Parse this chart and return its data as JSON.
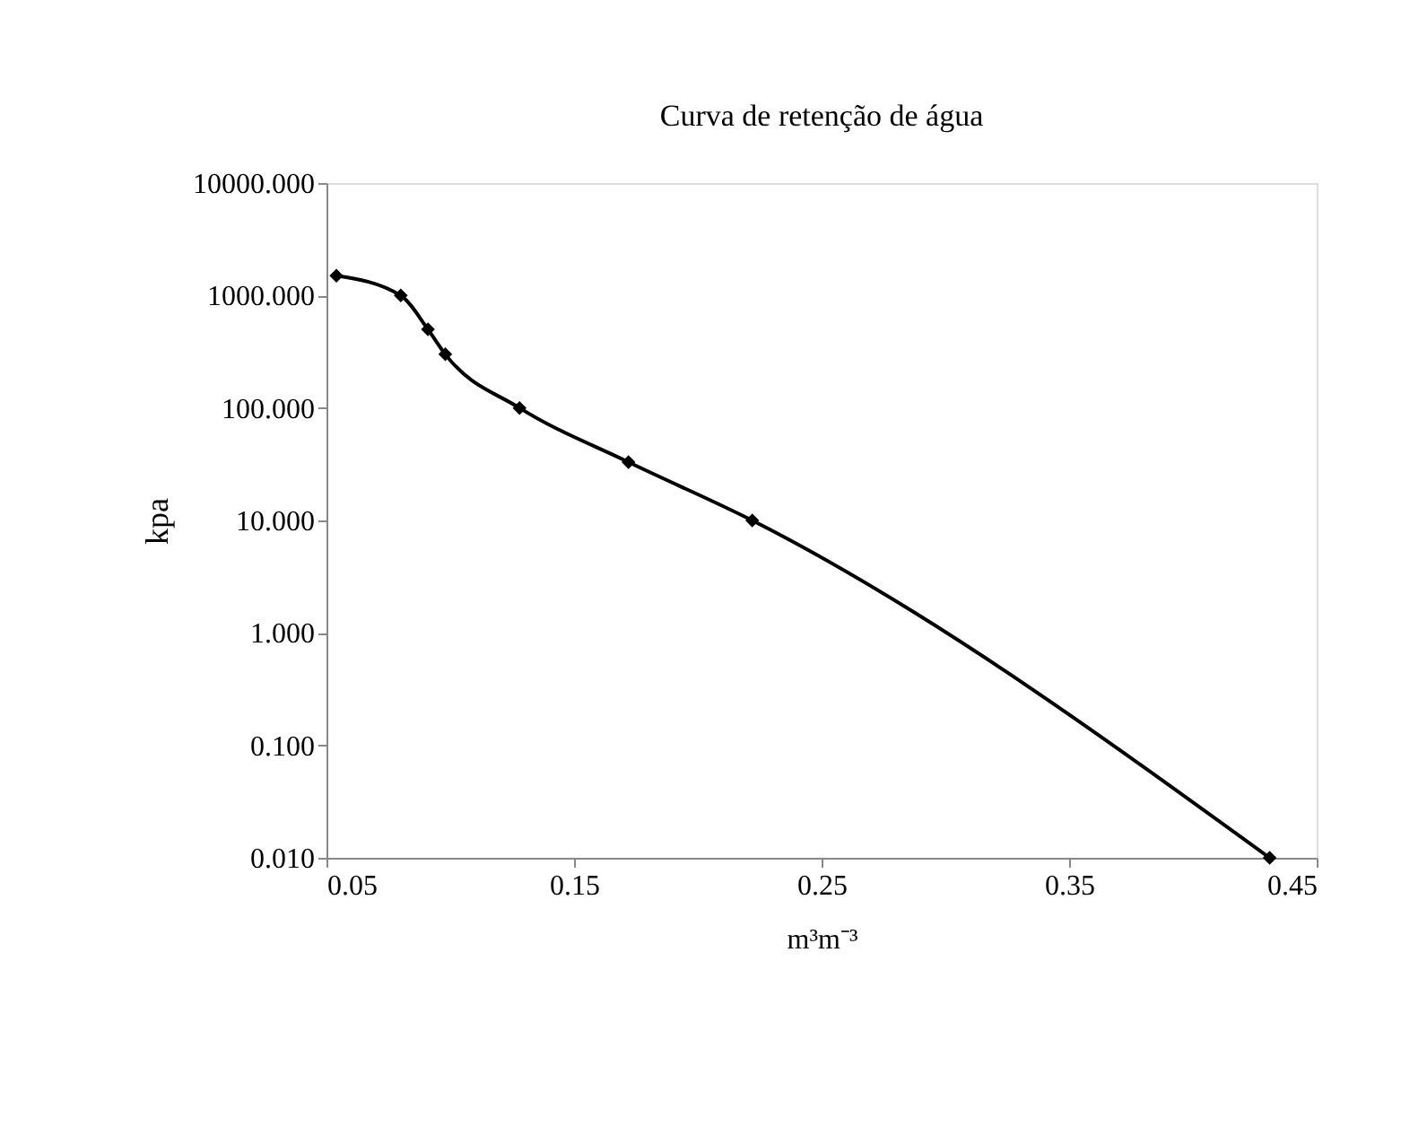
{
  "chart_data": {
    "type": "line",
    "title": "Curva de retenção de água",
    "xlabel": "m³m⁻³",
    "ylabel": "kpa",
    "x": [
      0.054,
      0.08,
      0.091,
      0.098,
      0.128,
      0.172,
      0.222,
      0.431
    ],
    "series": [
      {
        "color": "#000000",
        "values": [
          1500,
          1000,
          500,
          300,
          100,
          33,
          10,
          0.01
        ]
      }
    ],
    "xlim": [
      0.05,
      0.45
    ],
    "xticks": [
      0.05,
      0.15,
      0.25,
      0.35,
      0.45
    ],
    "ylim": [
      0.01,
      10000
    ],
    "yticks": [
      {
        "value": 0.01,
        "label": "0.010"
      },
      {
        "value": 0.1,
        "label": "0.100"
      },
      {
        "value": 1,
        "label": "1.000"
      },
      {
        "value": 10,
        "label": "10.000"
      },
      {
        "value": 100,
        "label": "100.000"
      },
      {
        "value": 1000,
        "label": "1000.000"
      },
      {
        "value": 10000,
        "label": "10000.000"
      }
    ],
    "log": "y",
    "marker": "diamond",
    "grid": false,
    "legend": false
  }
}
